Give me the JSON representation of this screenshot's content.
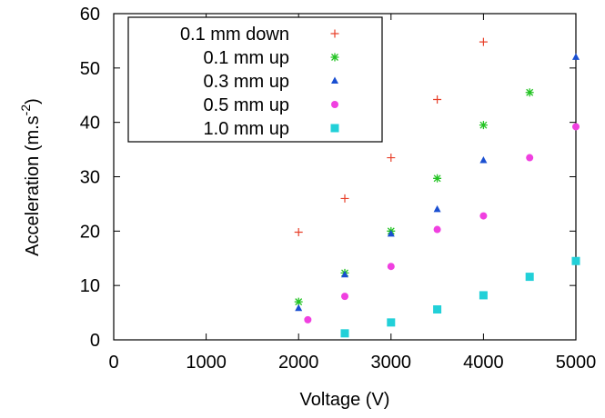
{
  "chart_data": {
    "type": "scatter",
    "xlabel": "Voltage (V)",
    "ylabel_main": "Acceleration (m.s",
    "ylabel_sup": "-2",
    "ylabel_end": ")",
    "xlim": [
      0,
      5000
    ],
    "ylim": [
      0,
      60
    ],
    "xticks": [
      "0",
      "1000",
      "2000",
      "3000",
      "4000",
      "5000"
    ],
    "yticks": [
      "0",
      "10",
      "20",
      "30",
      "40",
      "50",
      "60"
    ],
    "legend_position": "top-left",
    "grid": false,
    "series": [
      {
        "name": "0.1 mm down",
        "marker": "plus",
        "color": "#e8402a",
        "x": [
          2000,
          2500,
          3000,
          3500,
          4000
        ],
        "y": [
          19.8,
          26.0,
          33.5,
          44.2,
          54.8
        ]
      },
      {
        "name": "0.1 mm up",
        "marker": "star",
        "color": "#22c322",
        "x": [
          2000,
          2500,
          3000,
          3500,
          4000,
          4500
        ],
        "y": [
          7.0,
          12.3,
          20.0,
          29.7,
          39.5,
          45.5
        ]
      },
      {
        "name": "0.3 mm up",
        "marker": "triangle",
        "color": "#1a4fd1",
        "x": [
          2000,
          2500,
          3000,
          3500,
          4000,
          5000
        ],
        "y": [
          5.8,
          12.0,
          19.5,
          24.0,
          33.0,
          52.0
        ]
      },
      {
        "name": "0.5 mm up",
        "marker": "circle",
        "color": "#f040e0",
        "x": [
          2100,
          2500,
          3000,
          3500,
          4000,
          4500,
          5000
        ],
        "y": [
          3.7,
          8.0,
          13.5,
          20.3,
          22.8,
          33.5,
          39.2
        ]
      },
      {
        "name": "1.0 mm up",
        "marker": "square",
        "color": "#22d0d8",
        "x": [
          2500,
          3000,
          3500,
          4000,
          4500,
          5000
        ],
        "y": [
          1.2,
          3.2,
          5.6,
          8.2,
          11.6,
          14.5
        ]
      }
    ]
  }
}
